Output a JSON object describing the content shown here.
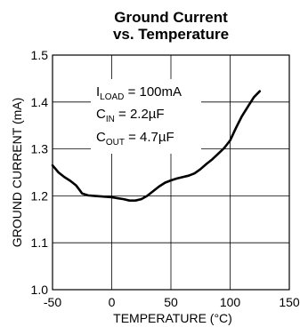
{
  "chart_data": {
    "type": "line",
    "title_line1": "Ground Current",
    "title_line2": "vs. Temperature",
    "xlabel": "TEMPERATURE (°C)",
    "ylabel": "GROUND CURRENT (mA)",
    "xlim": [
      -50,
      150
    ],
    "ylim": [
      1.0,
      1.5
    ],
    "x_ticks": [
      -50,
      0,
      50,
      100,
      150
    ],
    "y_ticks": [
      1.0,
      1.1,
      1.2,
      1.3,
      1.4,
      1.5
    ],
    "x_tick_labels": [
      "-50",
      "0",
      "50",
      "100",
      "150"
    ],
    "y_tick_labels": [
      "1.0",
      "1.1",
      "1.2",
      "1.3",
      "1.4",
      "1.5"
    ],
    "grid": true,
    "annotations": [
      {
        "main": "I",
        "sub": "LOAD",
        "rest": " = 100mA"
      },
      {
        "main": "C",
        "sub": "IN",
        "rest": " = 2.2µF"
      },
      {
        "main": "C",
        "sub": "OUT",
        "rest": " = 4.7µF"
      }
    ],
    "series": [
      {
        "color": "#000000",
        "x": [
          -50,
          -45,
          -40,
          -35,
          -30,
          -27,
          -25,
          -20,
          -15,
          -10,
          -5,
          0,
          5,
          10,
          15,
          20,
          25,
          30,
          35,
          40,
          45,
          50,
          55,
          60,
          65,
          70,
          75,
          80,
          85,
          90,
          95,
          100,
          105,
          110,
          115,
          120,
          125
        ],
        "y": [
          1.265,
          1.25,
          1.24,
          1.232,
          1.222,
          1.212,
          1.205,
          1.201,
          1.2,
          1.199,
          1.198,
          1.197,
          1.195,
          1.193,
          1.19,
          1.19,
          1.193,
          1.2,
          1.21,
          1.22,
          1.228,
          1.233,
          1.237,
          1.24,
          1.243,
          1.248,
          1.257,
          1.268,
          1.278,
          1.29,
          1.302,
          1.318,
          1.345,
          1.37,
          1.39,
          1.41,
          1.423
        ]
      }
    ]
  }
}
